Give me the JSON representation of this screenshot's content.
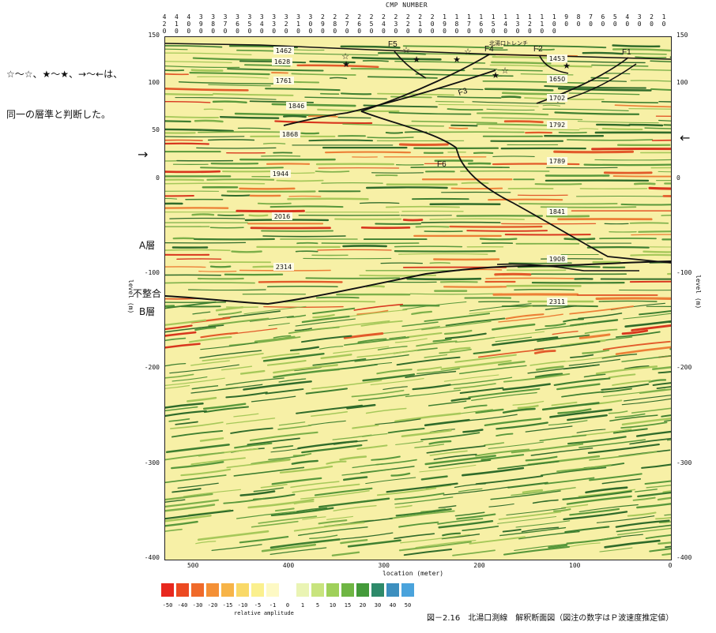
{
  "note_lines": [
    "☆～☆、★～★、→～←は、",
    "同一の層準と判断した。"
  ],
  "cmp_title": "CMP NUMBER",
  "cmp_numbers": [
    "420",
    "410",
    "400",
    "390",
    "380",
    "370",
    "360",
    "350",
    "340",
    "330",
    "320",
    "310",
    "300",
    "290",
    "280",
    "270",
    "260",
    "250",
    "240",
    "230",
    "220",
    "210",
    "200",
    "190",
    "180",
    "170",
    "160",
    "150",
    "140",
    "130",
    "120",
    "110",
    "100",
    "90",
    "80",
    "70",
    "60",
    "50",
    "40",
    "30",
    "20",
    "10"
  ],
  "left_axis": {
    "ticks": [
      "150",
      "100",
      "50",
      "0",
      "-100",
      "-200",
      "-300",
      "-400"
    ],
    "label": "level (m)"
  },
  "right_axis": {
    "ticks": [
      "150",
      "100",
      "0",
      "-100",
      "-200",
      "-300",
      "-400"
    ],
    "label": "level (m)"
  },
  "bottom_axis": {
    "ticks": [
      "500",
      "400",
      "300",
      "200",
      "100",
      "0"
    ],
    "label": "location (meter)"
  },
  "layers": {
    "a": "A層",
    "unconformity": "不整合",
    "b": "B層"
  },
  "trench_label": "北湯口トレンチ",
  "faults": [
    "F1",
    "F2",
    "F3",
    "F4",
    "F5",
    "F6"
  ],
  "velocities": [
    "1462",
    "1628",
    "1761",
    "1846",
    "1868",
    "1944",
    "2016",
    "2314",
    "1453",
    "1650",
    "1702",
    "1792",
    "1789",
    "1841",
    "1908",
    "2311"
  ],
  "legend": {
    "values": [
      "-50",
      "-40",
      "-30",
      "-20",
      "-15",
      "-10",
      "-5",
      "-1",
      "0",
      "1",
      "5",
      "10",
      "15",
      "20",
      "30",
      "40",
      "50"
    ],
    "title": "relative amplitude",
    "colors": [
      "#e8281e",
      "#ec4a22",
      "#f06a2a",
      "#f49036",
      "#f7b448",
      "#f9d968",
      "#fbf08e",
      "#fdf9c4",
      "#ffffff",
      "#eaf4b4",
      "#c8e47e",
      "#9fd05a",
      "#6fb644",
      "#449a3a",
      "#2e8a6a",
      "#3d8fbf",
      "#4aa3dc"
    ]
  },
  "caption": "図－2.16　北湯口測線　解釈断面図（図注の数字はＰ波速度推定値）"
}
